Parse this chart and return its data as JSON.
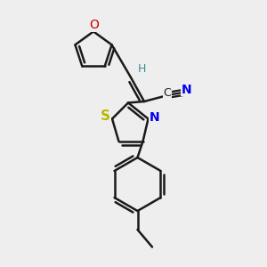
{
  "bg_color": "#eeeeee",
  "bond_color": "#1a1a1a",
  "oxygen_color": "#cc0000",
  "sulfur_color": "#b8b800",
  "nitrogen_color": "#0000ee",
  "teal_color": "#3a9090",
  "line_width": 1.8,
  "fig_w": 3.0,
  "fig_h": 3.0,
  "dpi": 100,
  "xlim": [
    0,
    10
  ],
  "ylim": [
    0,
    10
  ]
}
